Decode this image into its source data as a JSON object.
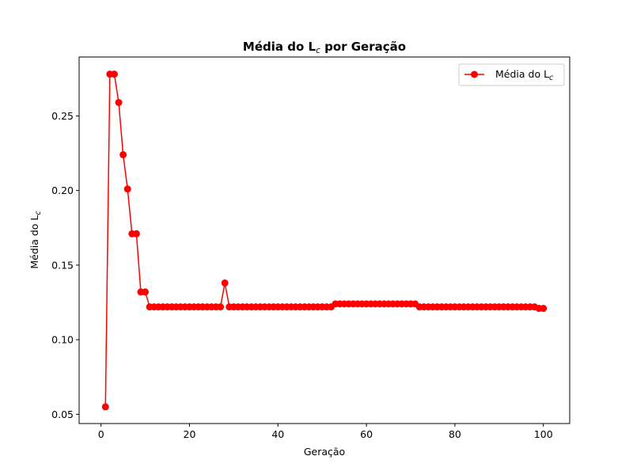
{
  "chart_data": {
    "type": "line",
    "title": "Média do L",
    "title_italic": "c",
    "title_suffix": " por Geração",
    "xlabel": "Geração",
    "ylabel": "Média do L",
    "ylabel_sub": "c",
    "legend_label": "Média do L",
    "legend_sub": "c",
    "legend_position": "top-right",
    "grid": false,
    "color": "#ff0000",
    "xlim": [
      -4.95,
      105.95
    ],
    "ylim": [
      0.0438,
      0.2895
    ],
    "xticks": [
      0,
      20,
      40,
      60,
      80,
      100
    ],
    "yticks": [
      0.05,
      0.1,
      0.15,
      0.2,
      0.25
    ],
    "ytick_labels": [
      "0.05",
      "0.10",
      "0.15",
      "0.20",
      "0.25"
    ],
    "series": [
      {
        "name": "Média do Lc",
        "x": [
          1,
          2,
          3,
          4,
          5,
          6,
          7,
          8,
          9,
          10,
          11,
          12,
          13,
          14,
          15,
          16,
          17,
          18,
          19,
          20,
          21,
          22,
          23,
          24,
          25,
          26,
          27,
          28,
          29,
          30,
          31,
          32,
          33,
          34,
          35,
          36,
          37,
          38,
          39,
          40,
          41,
          42,
          43,
          44,
          45,
          46,
          47,
          48,
          49,
          50,
          51,
          52,
          53,
          54,
          55,
          56,
          57,
          58,
          59,
          60,
          61,
          62,
          63,
          64,
          65,
          66,
          67,
          68,
          69,
          70,
          71,
          72,
          73,
          74,
          75,
          76,
          77,
          78,
          79,
          80,
          81,
          82,
          83,
          84,
          85,
          86,
          87,
          88,
          89,
          90,
          91,
          92,
          93,
          94,
          95,
          96,
          97,
          98,
          99,
          100
        ],
        "y": [
          0.055,
          0.278,
          0.278,
          0.259,
          0.224,
          0.201,
          0.171,
          0.171,
          0.132,
          0.132,
          0.122,
          0.122,
          0.122,
          0.122,
          0.122,
          0.122,
          0.122,
          0.122,
          0.122,
          0.122,
          0.122,
          0.122,
          0.122,
          0.122,
          0.122,
          0.122,
          0.122,
          0.138,
          0.122,
          0.122,
          0.122,
          0.122,
          0.122,
          0.122,
          0.122,
          0.122,
          0.122,
          0.122,
          0.122,
          0.122,
          0.122,
          0.122,
          0.122,
          0.122,
          0.122,
          0.122,
          0.122,
          0.122,
          0.122,
          0.122,
          0.122,
          0.122,
          0.124,
          0.124,
          0.124,
          0.124,
          0.124,
          0.124,
          0.124,
          0.124,
          0.124,
          0.124,
          0.124,
          0.124,
          0.124,
          0.124,
          0.124,
          0.124,
          0.124,
          0.124,
          0.124,
          0.122,
          0.122,
          0.122,
          0.122,
          0.122,
          0.122,
          0.122,
          0.122,
          0.122,
          0.122,
          0.122,
          0.122,
          0.122,
          0.122,
          0.122,
          0.122,
          0.122,
          0.122,
          0.122,
          0.122,
          0.122,
          0.122,
          0.122,
          0.122,
          0.122,
          0.122,
          0.122,
          0.121,
          0.121
        ]
      }
    ]
  }
}
